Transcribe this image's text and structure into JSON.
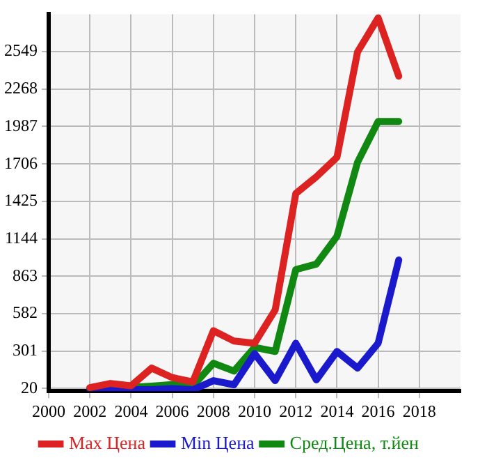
{
  "chart_data": {
    "type": "line",
    "x": [
      2002,
      2003,
      2004,
      2005,
      2006,
      2007,
      2008,
      2009,
      2010,
      2011,
      2012,
      2013,
      2014,
      2015,
      2016,
      2017
    ],
    "series": [
      {
        "name": "Max Цена",
        "color": "#dd2222",
        "values": [
          27,
          58,
          40,
          173,
          102,
          70,
          454,
          376,
          360,
          610,
          1484,
          1610,
          1756,
          2547,
          2803,
          2365
        ]
      },
      {
        "name": "Min Цена",
        "color": "#1a1acc",
        "values": [
          15,
          20,
          12,
          12,
          20,
          10,
          79,
          48,
          282,
          79,
          360,
          85,
          298,
          173,
          360,
          985
        ]
      },
      {
        "name": "Сред.Цена, т.йен",
        "color": "#118811",
        "values": [
          20,
          38,
          28,
          38,
          50,
          38,
          210,
          151,
          329,
          298,
          913,
          954,
          1163,
          1719,
          2025,
          2025
        ]
      }
    ],
    "xlim": [
      2000,
      2020
    ],
    "xticks": [
      2000,
      2002,
      2004,
      2006,
      2008,
      2010,
      2012,
      2014,
      2016,
      2018
    ],
    "ylim": [
      0,
      2830
    ],
    "yticks": [
      20,
      301,
      582,
      863,
      1144,
      1425,
      1706,
      1987,
      2268,
      2549
    ],
    "grid": true,
    "legend": "bottom",
    "marker": "none",
    "line_style": "solid"
  }
}
